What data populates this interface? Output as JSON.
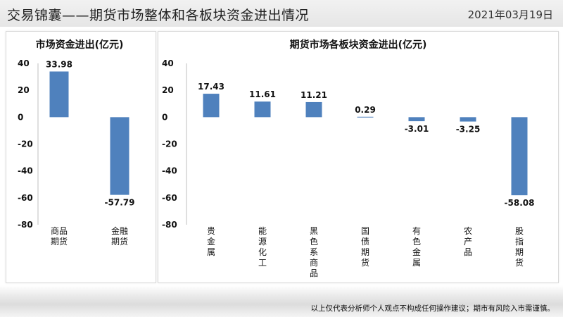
{
  "header": {
    "title": "交易锦囊——期货市场整体和各板块资金进出情况",
    "date": "2021年03月19日"
  },
  "footer": {
    "disclaimer": "以上仅代表分析师个人观点不构成任何操作建议；期市有风险入市需谨慎。"
  },
  "colors": {
    "bar": "#4F81BD",
    "axis": "#bfbfbf"
  },
  "chart_data": [
    {
      "type": "bar",
      "title": "市场资金进出(亿元)",
      "categories": [
        "商品期货",
        "金融期货"
      ],
      "values": [
        33.98,
        -57.79
      ],
      "data_labels": [
        "33.98",
        "-57.79"
      ],
      "ylim": [
        -80,
        40
      ],
      "yticks": [
        40,
        20,
        0,
        -20,
        -40,
        -60,
        -80
      ],
      "xlabel": "",
      "ylabel": "",
      "grid": false,
      "legend": "none"
    },
    {
      "type": "bar",
      "title": "期货市场各板块资金进出(亿元)",
      "categories": [
        "贵金属",
        "能源化工",
        "黑色系商品",
        "国债期货",
        "有色金属",
        "农产品",
        "股指期货"
      ],
      "values": [
        17.43,
        11.61,
        11.21,
        0.29,
        -3.01,
        -3.25,
        -58.08
      ],
      "data_labels": [
        "17.43",
        "11.61",
        "11.21",
        "0.29",
        "-3.01",
        "-3.25",
        "-58.08"
      ],
      "ylim": [
        -80,
        40
      ],
      "yticks": [
        40,
        20,
        0,
        -20,
        -40,
        -60,
        -80
      ],
      "xlabel": "",
      "ylabel": "",
      "grid": false,
      "legend": "none"
    }
  ]
}
